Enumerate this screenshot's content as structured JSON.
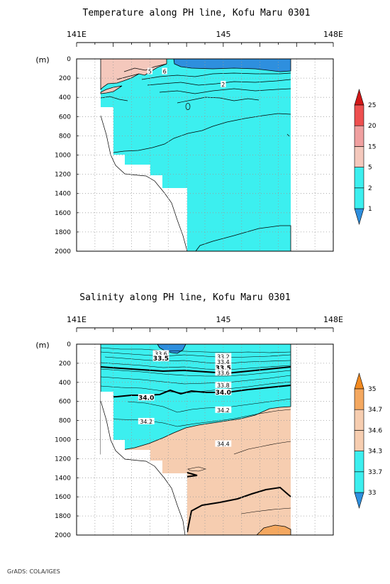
{
  "chart_data": [
    {
      "type": "heatmap",
      "title": "Temperature along PH line, Kofu Maru 0301",
      "xlabel": "",
      "ylabel": "(m)",
      "x_ticks": [
        "141E",
        "145",
        "148E"
      ],
      "x_range": [
        141,
        148
      ],
      "y_ticks": [
        "0",
        "200",
        "400",
        "600",
        "800",
        "1000",
        "1200",
        "1400",
        "1600",
        "1800",
        "2000"
      ],
      "y_range": [
        0,
        2000
      ],
      "y_inverted": true,
      "grid": true,
      "contour_labels": [
        {
          "lon": 143.0,
          "depth": 130,
          "text": "5"
        },
        {
          "lon": 143.4,
          "depth": 130,
          "text": "6"
        },
        {
          "lon": 145.0,
          "depth": 265,
          "text": "2"
        }
      ],
      "colorbar": {
        "levels": [
          "1",
          "2",
          "5",
          "15",
          "20",
          "25"
        ],
        "colors": [
          "#2e8fde",
          "#3cefef",
          "#3cefef",
          "#f4c8bc",
          "#f0a0a0",
          "#ee5050",
          "#d21818"
        ]
      },
      "regions": {
        "data_lon_min": 142.4,
        "data_lon_max": 146.7,
        "warm_layer_depth_max": 300,
        "cold_surface_layer": "<1",
        "bulk_range": "2-5",
        "deep_range": "1-2"
      }
    },
    {
      "type": "heatmap",
      "title": "Salinity along PH line, Kofu Maru 0301",
      "xlabel": "",
      "ylabel": "(m)",
      "x_ticks": [
        "141E",
        "145",
        "148E"
      ],
      "x_range": [
        141,
        148
      ],
      "y_ticks": [
        "0",
        "200",
        "400",
        "600",
        "800",
        "1000",
        "1200",
        "1400",
        "1600",
        "1800",
        "2000"
      ],
      "y_range": [
        0,
        2000
      ],
      "y_inverted": true,
      "grid": true,
      "contour_labels": [
        {
          "lon": 143.3,
          "depth": 100,
          "text": "33.6"
        },
        {
          "lon": 143.3,
          "depth": 150,
          "text": "33.5"
        },
        {
          "lon": 145.0,
          "depth": 130,
          "text": "33.2"
        },
        {
          "lon": 145.0,
          "depth": 185,
          "text": "33.4"
        },
        {
          "lon": 145.0,
          "depth": 250,
          "text": "33.5"
        },
        {
          "lon": 145.0,
          "depth": 300,
          "text": "33.6"
        },
        {
          "lon": 145.0,
          "depth": 430,
          "text": "33.8"
        },
        {
          "lon": 145.0,
          "depth": 505,
          "text": "34.0"
        },
        {
          "lon": 142.9,
          "depth": 560,
          "text": "34.0"
        },
        {
          "lon": 145.0,
          "depth": 690,
          "text": "34.2"
        },
        {
          "lon": 142.9,
          "depth": 810,
          "text": "34.2"
        },
        {
          "lon": 145.0,
          "depth": 1045,
          "text": "34.4"
        }
      ],
      "colorbar": {
        "levels": [
          "33",
          "33.7",
          "34.3",
          "34.6",
          "34.7",
          "35"
        ],
        "colors": [
          "#2e8fde",
          "#3cefef",
          "#3cefef",
          "#f6cdb0",
          "#f6cdb0",
          "#f4a860",
          "#f28a20"
        ]
      },
      "regions": {
        "data_lon_min": 142.4,
        "data_lon_max": 146.7,
        "fresh_layer_depth_max": 700,
        "bulk_range": "34.3-34.6",
        "surface_min": "<33"
      }
    }
  ],
  "credit": "GrADS: COLA/IGES"
}
